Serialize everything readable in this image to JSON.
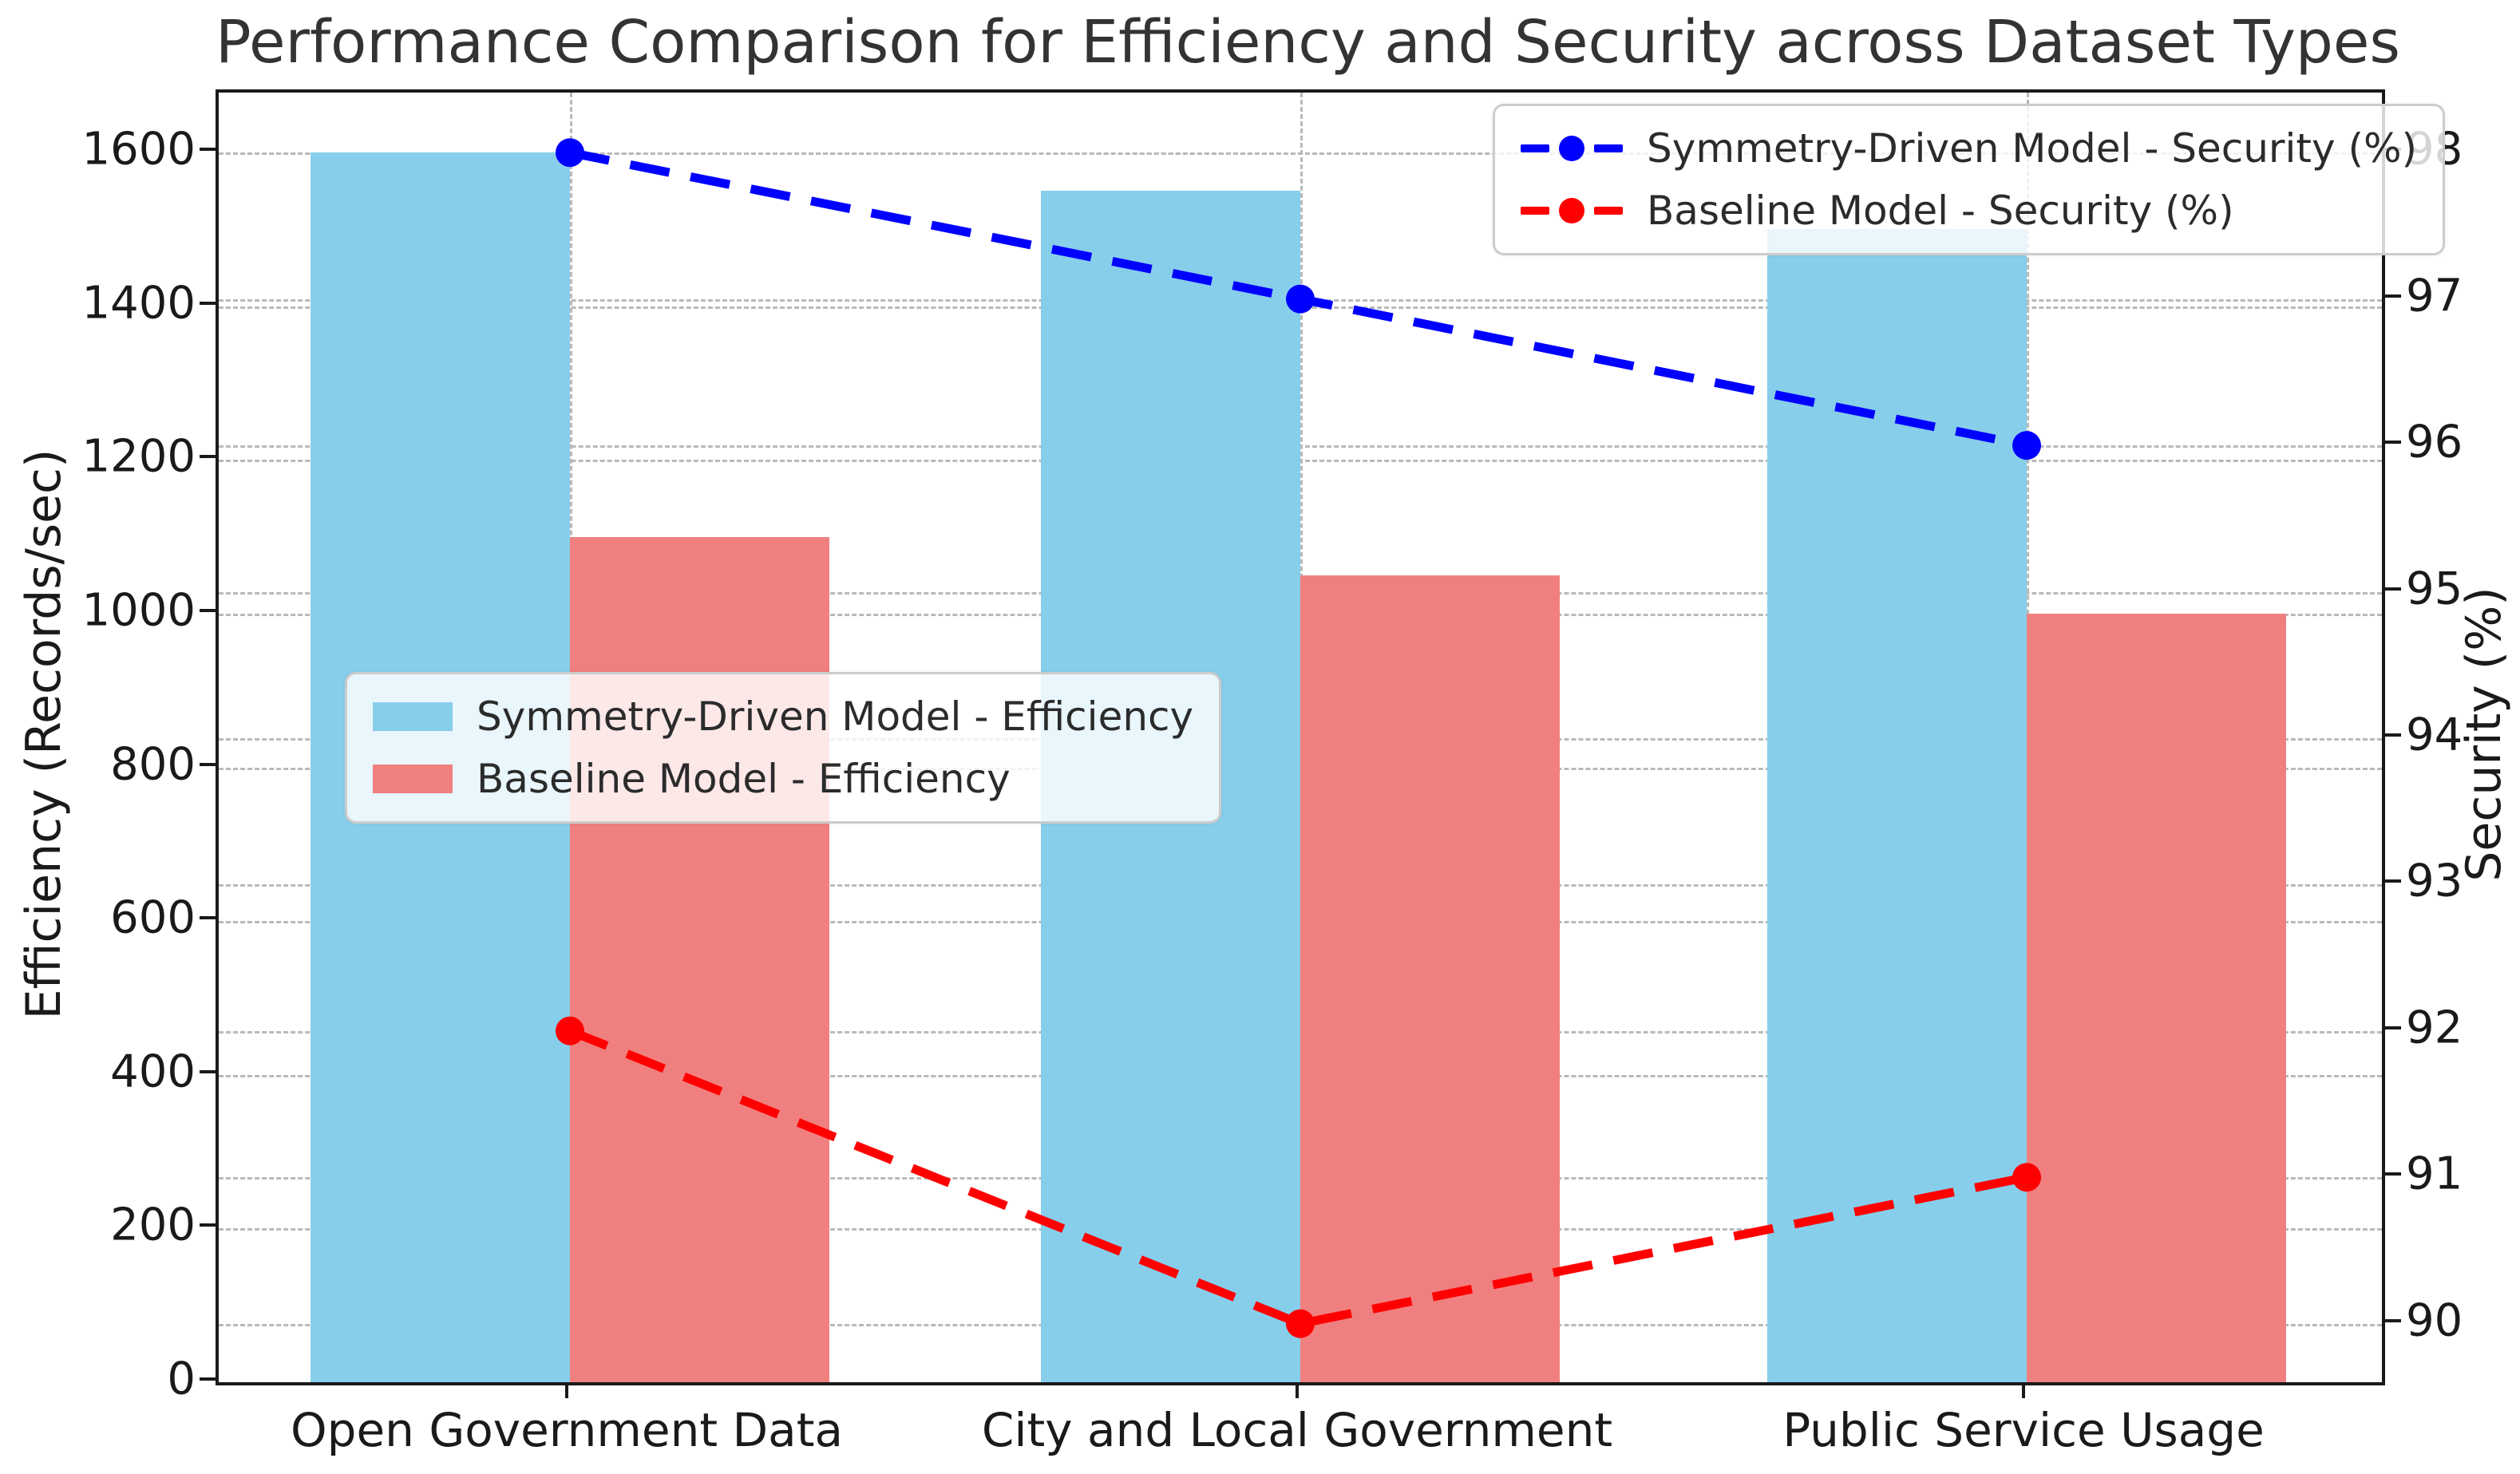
{
  "title": "Performance Comparison for Efficiency and Security across Dataset Types",
  "chart_data": {
    "type": "bar",
    "subtype": "dual-axis bar + dashed line with circle markers",
    "categories": [
      "Open Government Data",
      "City and Local Government",
      "Public Service Usage"
    ],
    "bar_series": [
      {
        "name": "Symmetry-Driven Model - Efficiency",
        "axis": "left",
        "color": "#87CEEB",
        "values": [
          1600,
          1550,
          1500
        ]
      },
      {
        "name": "Baseline Model - Efficiency",
        "axis": "left",
        "color": "#F08080",
        "values": [
          1100,
          1050,
          1000
        ]
      }
    ],
    "line_series": [
      {
        "name": "Symmetry-Driven Model - Security (%)",
        "axis": "right",
        "color": "#0000ff",
        "values": [
          98,
          97,
          96
        ]
      },
      {
        "name": "Baseline Model - Security (%)",
        "axis": "right",
        "color": "#ff0000",
        "values": [
          92,
          90,
          91
        ]
      }
    ],
    "left_axis": {
      "label": "Efficiency (Records/sec)",
      "ticks": [
        0,
        200,
        400,
        600,
        800,
        1000,
        1200,
        1400,
        1600
      ],
      "range": [
        0,
        1678
      ]
    },
    "right_axis": {
      "label": "Security (%)",
      "ticks": [
        90,
        91,
        92,
        93,
        94,
        95,
        96,
        97,
        98
      ],
      "range": [
        89.6,
        98.41
      ]
    },
    "grid": true,
    "gridline_color": "#b9b9b9",
    "legend_positions": {
      "security_legend": "upper right",
      "efficiency_legend": "center left"
    }
  }
}
